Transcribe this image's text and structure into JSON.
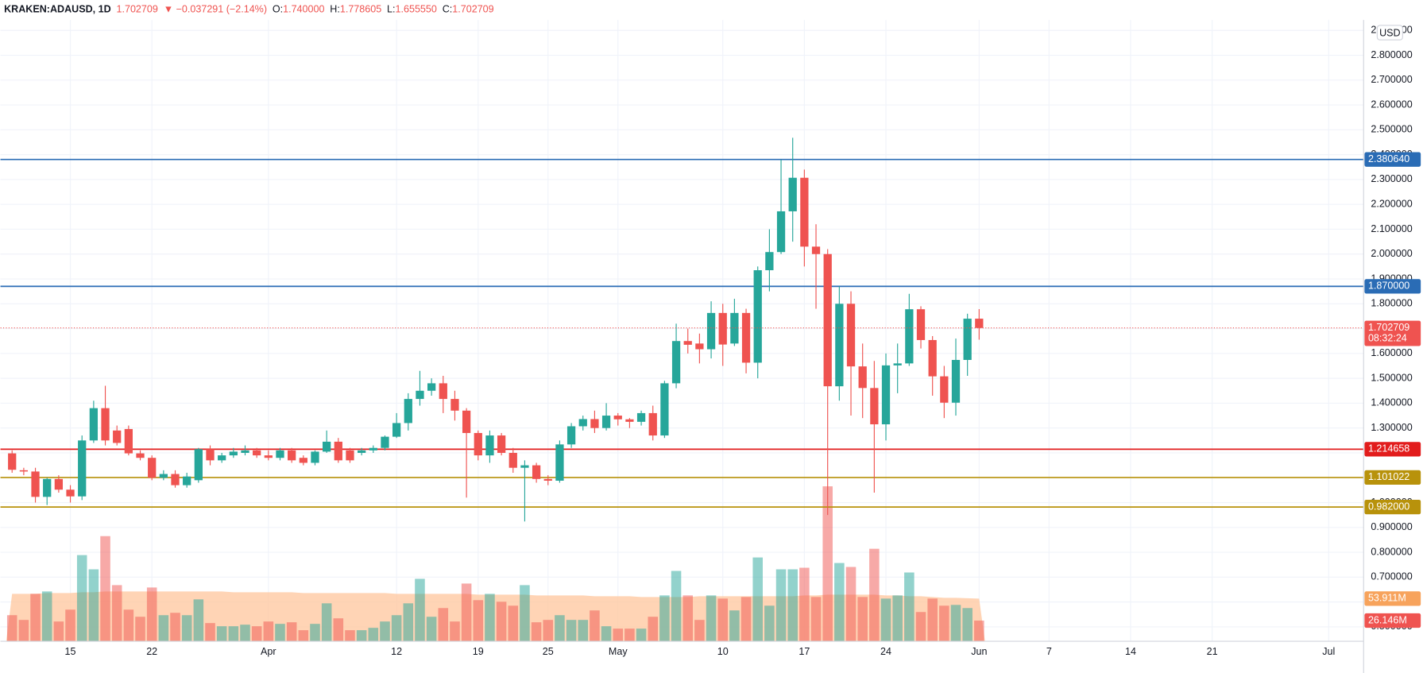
{
  "header": {
    "symbol": "KRAKEN:ADAUSD, 1D",
    "price": "1.702709",
    "change": "▼ −0.037291 (−2.14%)",
    "ohlc": [
      {
        "key": "O:",
        "value": "1.740000"
      },
      {
        "key": "H:",
        "value": "1.778605"
      },
      {
        "key": "L:",
        "value": "1.655550"
      },
      {
        "key": "C:",
        "value": "1.702709"
      }
    ],
    "currency": "USD"
  },
  "chart_data": {
    "type": "candlestick",
    "x": [
      "Mar 10",
      "Mar 11",
      "Mar 12",
      "Mar 13",
      "Mar 14",
      "Mar 15",
      "Mar 16",
      "Mar 17",
      "Mar 18",
      "Mar 19",
      "Mar 20",
      "Mar 21",
      "Mar 22",
      "Mar 23",
      "Mar 24",
      "Mar 25",
      "Mar 26",
      "Mar 27",
      "Mar 28",
      "Mar 29",
      "Mar 30",
      "Mar 31",
      "Apr 1",
      "Apr 2",
      "Apr 3",
      "Apr 4",
      "Apr 5",
      "Apr 6",
      "Apr 7",
      "Apr 8",
      "Apr 9",
      "Apr 10",
      "Apr 11",
      "Apr 12",
      "Apr 13",
      "Apr 14",
      "Apr 15",
      "Apr 16",
      "Apr 17",
      "Apr 18",
      "Apr 19",
      "Apr 20",
      "Apr 21",
      "Apr 22",
      "Apr 23",
      "Apr 24",
      "Apr 25",
      "Apr 26",
      "Apr 27",
      "Apr 28",
      "Apr 29",
      "Apr 30",
      "May 1",
      "May 2",
      "May 3",
      "May 4",
      "May 5",
      "May 6",
      "May 7",
      "May 8",
      "May 9",
      "May 10",
      "May 11",
      "May 12",
      "May 13",
      "May 14",
      "May 15",
      "May 16",
      "May 17",
      "May 18",
      "May 19",
      "May 20",
      "May 21",
      "May 22",
      "May 23",
      "May 24",
      "May 25",
      "May 26",
      "May 27",
      "May 28",
      "May 29",
      "May 30",
      "May 31",
      "Jun 1"
    ],
    "open": [
      1.198,
      1.13,
      1.125,
      1.023,
      1.095,
      1.052,
      1.025,
      1.25,
      1.38,
      1.29,
      1.296,
      1.198,
      1.18,
      1.1,
      1.115,
      1.07,
      1.09,
      1.215,
      1.17,
      1.19,
      1.2,
      1.21,
      1.19,
      1.18,
      1.21,
      1.18,
      1.16,
      1.205,
      1.245,
      1.21,
      1.2,
      1.21,
      1.22,
      1.265,
      1.32,
      1.417,
      1.45,
      1.48,
      1.417,
      1.37,
      1.28,
      1.19,
      1.27,
      1.2,
      1.14,
      1.15,
      1.095,
      1.088,
      1.234,
      1.307,
      1.336,
      1.3,
      1.35,
      1.335,
      1.325,
      1.36,
      1.27,
      1.48,
      1.65,
      1.64,
      1.617,
      1.763,
      1.64,
      1.763,
      1.563,
      1.935,
      2.008,
      2.172,
      2.307,
      2.03,
      2.0,
      1.468,
      1.8,
      1.548,
      1.461,
      1.315,
      1.552,
      1.56,
      1.778,
      1.654,
      1.508,
      1.402,
      1.574,
      1.74
    ],
    "high": [
      1.21,
      1.14,
      1.14,
      1.1,
      1.11,
      1.07,
      1.27,
      1.41,
      1.47,
      1.31,
      1.31,
      1.21,
      1.19,
      1.13,
      1.13,
      1.12,
      1.22,
      1.23,
      1.2,
      1.22,
      1.23,
      1.22,
      1.21,
      1.22,
      1.22,
      1.19,
      1.21,
      1.29,
      1.26,
      1.22,
      1.22,
      1.23,
      1.27,
      1.36,
      1.44,
      1.53,
      1.5,
      1.51,
      1.45,
      1.38,
      1.29,
      1.29,
      1.28,
      1.22,
      1.17,
      1.16,
      1.11,
      1.25,
      1.32,
      1.35,
      1.37,
      1.4,
      1.36,
      1.34,
      1.37,
      1.39,
      1.49,
      1.72,
      1.7,
      1.68,
      1.81,
      1.8,
      1.82,
      1.78,
      1.95,
      2.1,
      2.38,
      2.468,
      2.34,
      2.12,
      2.02,
      1.87,
      1.85,
      1.64,
      1.57,
      1.6,
      1.64,
      1.84,
      1.79,
      1.67,
      1.55,
      1.66,
      1.76,
      1.778605
    ],
    "low": [
      1.12,
      1.11,
      1.0,
      0.99,
      1.04,
      1.0,
      1.01,
      1.24,
      1.23,
      1.23,
      1.19,
      1.17,
      1.09,
      1.09,
      1.06,
      1.06,
      1.08,
      1.15,
      1.16,
      1.18,
      1.19,
      1.18,
      1.17,
      1.17,
      1.16,
      1.15,
      1.15,
      1.2,
      1.16,
      1.16,
      1.19,
      1.2,
      1.21,
      1.26,
      1.29,
      1.39,
      1.43,
      1.36,
      1.33,
      1.02,
      1.17,
      1.16,
      1.19,
      1.12,
      0.924,
      1.08,
      1.07,
      1.08,
      1.22,
      1.29,
      1.28,
      1.29,
      1.31,
      1.3,
      1.31,
      1.25,
      1.26,
      1.46,
      1.6,
      1.56,
      1.58,
      1.55,
      1.63,
      1.52,
      1.5,
      1.85,
      2.0,
      2.05,
      1.95,
      1.78,
      0.95,
      1.41,
      1.35,
      1.34,
      1.04,
      1.25,
      1.44,
      1.55,
      1.62,
      1.43,
      1.34,
      1.35,
      1.51,
      1.65555
    ],
    "close": [
      1.132,
      1.125,
      1.023,
      1.095,
      1.052,
      1.025,
      1.25,
      1.38,
      1.25,
      1.24,
      1.198,
      1.18,
      1.1,
      1.115,
      1.07,
      1.105,
      1.215,
      1.17,
      1.19,
      1.205,
      1.21,
      1.19,
      1.18,
      1.21,
      1.17,
      1.16,
      1.205,
      1.245,
      1.17,
      1.17,
      1.21,
      1.22,
      1.265,
      1.32,
      1.417,
      1.45,
      1.48,
      1.417,
      1.37,
      1.28,
      1.19,
      1.27,
      1.2,
      1.14,
      1.15,
      1.095,
      1.088,
      1.234,
      1.307,
      1.336,
      1.3,
      1.35,
      1.335,
      1.325,
      1.36,
      1.27,
      1.48,
      1.65,
      1.635,
      1.617,
      1.763,
      1.636,
      1.763,
      1.563,
      1.935,
      2.008,
      2.172,
      2.307,
      2.03,
      2.0,
      1.468,
      1.8,
      1.548,
      1.461,
      1.315,
      1.552,
      1.56,
      1.778,
      1.654,
      1.508,
      1.402,
      1.574,
      1.74,
      1.702709
    ],
    "volume": {
      "axis": "y2",
      "values": [
        33,
        27,
        60,
        63,
        25,
        40,
        109,
        91,
        133,
        71,
        40,
        31,
        68,
        33,
        36,
        33,
        53,
        23,
        19,
        19,
        21,
        19,
        25,
        22,
        24,
        14,
        22,
        48,
        29,
        14,
        14,
        17,
        25,
        33,
        48,
        79,
        31,
        42,
        25,
        73,
        52,
        60,
        50,
        45,
        71,
        24,
        27,
        33,
        27,
        27,
        39,
        19,
        16,
        16,
        16,
        31,
        58,
        89,
        58,
        27,
        58,
        54,
        39,
        56,
        106,
        45,
        91,
        91,
        93,
        56,
        196,
        99,
        94,
        56,
        117,
        54,
        58,
        87,
        37,
        54,
        45,
        46,
        42,
        26.146
      ],
      "last_label": "26.146M"
    },
    "volume_ma": {
      "axis": "y2",
      "color": "#ffc9a3",
      "tag_color": "#f7a35c",
      "values": [
        60,
        60,
        60,
        61,
        61,
        61,
        62,
        62,
        63,
        63,
        63,
        63,
        63,
        63,
        63,
        63,
        63,
        63,
        63,
        62,
        62,
        62,
        62,
        62,
        62,
        61,
        61,
        61,
        61,
        61,
        61,
        61,
        61,
        60,
        60,
        60,
        60,
        60,
        60,
        60,
        59,
        59,
        59,
        59,
        59,
        58,
        58,
        58,
        58,
        58,
        57,
        57,
        57,
        57,
        56,
        56,
        56,
        56,
        56,
        57,
        57,
        57,
        57,
        57,
        57,
        57,
        57,
        57,
        58,
        58,
        59,
        59,
        59,
        59,
        59,
        58,
        58,
        57,
        57,
        56,
        55,
        55,
        54.5,
        53.911
      ],
      "last_label": "53.911M"
    },
    "up_color": "#26a69a",
    "down_color": "#ef5350",
    "xlim": [
      "Mar 9",
      "Jul 4"
    ],
    "xticks": [
      {
        "value": "Mar 15",
        "label": "15"
      },
      {
        "value": "Mar 22",
        "label": "22"
      },
      {
        "value": "Apr 1",
        "label": "Apr"
      },
      {
        "value": "Apr 12",
        "label": "12"
      },
      {
        "value": "Apr 19",
        "label": "19"
      },
      {
        "value": "Apr 25",
        "label": "25"
      },
      {
        "value": "May 1",
        "label": "May"
      },
      {
        "value": "May 10",
        "label": "10"
      },
      {
        "value": "May 17",
        "label": "17"
      },
      {
        "value": "May 24",
        "label": "24"
      },
      {
        "value": "Jun 1",
        "label": "Jun"
      },
      {
        "value": "Jun 7",
        "label": "7"
      },
      {
        "value": "Jun 14",
        "label": "14"
      },
      {
        "value": "Jun 21",
        "label": "21"
      },
      {
        "value": "Jul 1",
        "label": "Jul"
      }
    ],
    "ylim": [
      0.442,
      2.942
    ],
    "yticks": [
      {
        "value": 0.5,
        "label": "0.500000"
      },
      {
        "value": 0.6,
        "label": "0.600000"
      },
      {
        "value": 0.7,
        "label": "0.700000"
      },
      {
        "value": 0.8,
        "label": "0.800000"
      },
      {
        "value": 0.9,
        "label": "0.900000"
      },
      {
        "value": 1.0,
        "label": "1.000000"
      },
      {
        "value": 1.1,
        "label": "1.100000"
      },
      {
        "value": 1.2,
        "label": "1.200000"
      },
      {
        "value": 1.3,
        "label": "1.300000"
      },
      {
        "value": 1.4,
        "label": "1.400000"
      },
      {
        "value": 1.5,
        "label": "1.500000"
      },
      {
        "value": 1.6,
        "label": "1.600000"
      },
      {
        "value": 1.7,
        "label": "1.700000"
      },
      {
        "value": 1.8,
        "label": "1.800000"
      },
      {
        "value": 1.9,
        "label": "1.900000"
      },
      {
        "value": 2.0,
        "label": "2.000000"
      },
      {
        "value": 2.1,
        "label": "2.100000"
      },
      {
        "value": 2.2,
        "label": "2.200000"
      },
      {
        "value": 2.3,
        "label": "2.300000"
      },
      {
        "value": 2.4,
        "label": "2.400000"
      },
      {
        "value": 2.5,
        "label": "2.500000"
      },
      {
        "value": 2.6,
        "label": "2.600000"
      },
      {
        "value": 2.7,
        "label": "2.700000"
      },
      {
        "value": 2.8,
        "label": "2.800000"
      },
      {
        "value": 2.9,
        "label": "2.900000"
      }
    ],
    "y2lim": [
      0,
      786
    ],
    "grid": true,
    "levels": [
      {
        "value": 2.38064,
        "label": "2.380640",
        "color": "#2a6cb5"
      },
      {
        "value": 1.87,
        "label": "1.870000",
        "color": "#2a6cb5"
      },
      {
        "value": 1.214658,
        "label": "1.214658",
        "color": "#e21c1c"
      },
      {
        "value": 1.101022,
        "label": "1.101022",
        "color": "#b8920b"
      },
      {
        "value": 0.982,
        "label": "0.982000",
        "color": "#b8920b"
      }
    ],
    "last": {
      "value": 1.702709,
      "label": "1.702709",
      "countdown": "08:32:24",
      "color": "#ef5350"
    }
  }
}
